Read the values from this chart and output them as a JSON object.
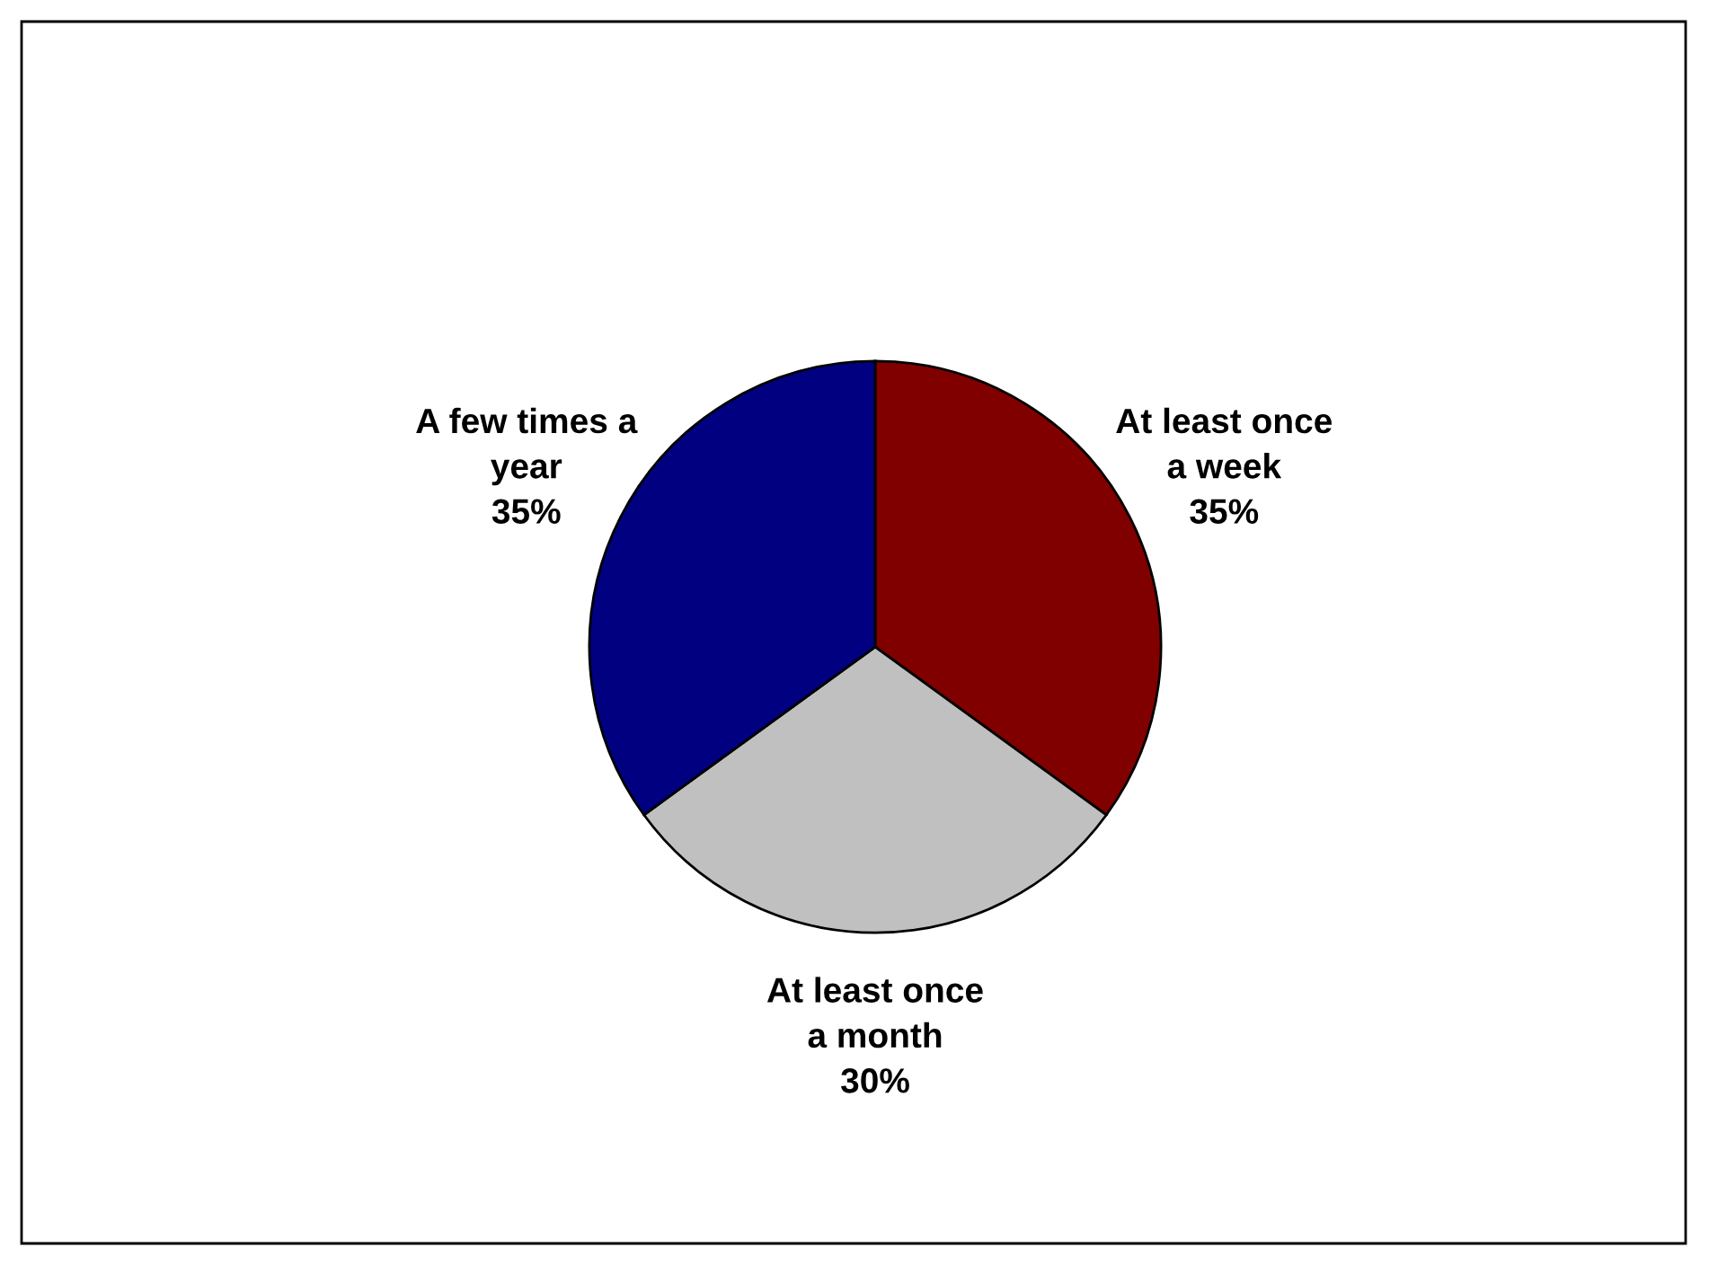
{
  "chart_data": {
    "type": "pie",
    "categories": [
      "At least once\na week",
      "At least once\na month",
      "A few times a\nyear"
    ],
    "values": [
      35,
      30,
      35
    ],
    "colors": [
      "#800000",
      "#c0c0c0",
      "#000080"
    ],
    "value_labels": [
      "35%",
      "30%",
      "35%"
    ]
  }
}
